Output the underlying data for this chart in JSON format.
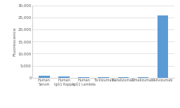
{
  "categories": [
    "Human\nSerum",
    "Human\nIgG1 Kappa",
    "Human\nIgG1 Lambda",
    "Tocilizumab",
    "Natalizumab",
    "Omalizumab",
    "Palivizumab"
  ],
  "values": [
    780,
    680,
    130,
    380,
    230,
    330,
    25700
  ],
  "bar_color": "#5b9bd5",
  "ylabel": "Fluorescence",
  "ylim": [
    0,
    30000
  ],
  "yticks": [
    0,
    5000,
    10000,
    15000,
    20000,
    25000,
    30000
  ],
  "ytick_labels": [
    "0",
    "5,000",
    "10,000",
    "15,000",
    "20,000",
    "25,000",
    "30,000"
  ],
  "background_color": "#ffffff",
  "grid_color": "#d9d9d9",
  "ylabel_fontsize": 4.5,
  "tick_fontsize": 4.0,
  "xtick_fontsize": 3.5,
  "bar_width": 0.55
}
